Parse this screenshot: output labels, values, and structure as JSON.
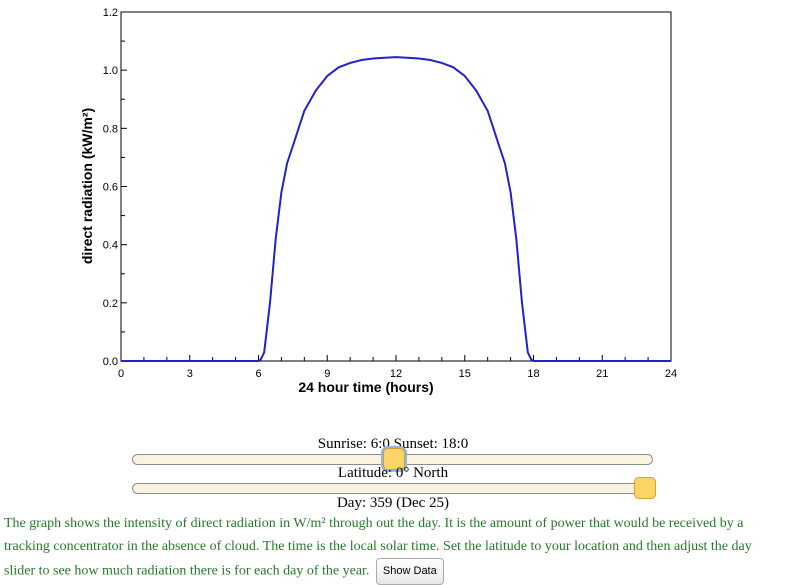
{
  "chart_data": {
    "type": "line",
    "xlabel": "24 hour time (hours)",
    "ylabel": "direct radiation (kW/m²)",
    "xlim": [
      0,
      24
    ],
    "ylim": [
      0,
      1.2
    ],
    "x_ticks": [
      0,
      3,
      6,
      9,
      12,
      15,
      18,
      21,
      24
    ],
    "y_ticks": [
      "0.0",
      "0.2",
      "0.4",
      "0.6",
      "0.8",
      "1.0",
      "1.2"
    ],
    "grid": false,
    "line_color": "#2222cc",
    "x": [
      0,
      1,
      2,
      3,
      4,
      5,
      6,
      6.1,
      6.25,
      6.5,
      6.75,
      7,
      7.25,
      7.5,
      8,
      8.5,
      9,
      9.5,
      10,
      10.5,
      11,
      11.5,
      12,
      12.5,
      13,
      13.5,
      14,
      14.5,
      15,
      15.5,
      16,
      16.5,
      16.75,
      17,
      17.25,
      17.5,
      17.75,
      17.9,
      18,
      19,
      20,
      21,
      22,
      23,
      24
    ],
    "y": [
      0,
      0,
      0,
      0,
      0,
      0,
      0,
      0.005,
      0.03,
      0.2,
      0.42,
      0.58,
      0.68,
      0.74,
      0.86,
      0.93,
      0.98,
      1.01,
      1.025,
      1.035,
      1.04,
      1.043,
      1.045,
      1.043,
      1.04,
      1.035,
      1.025,
      1.01,
      0.98,
      0.93,
      0.86,
      0.74,
      0.68,
      0.58,
      0.42,
      0.2,
      0.03,
      0.005,
      0,
      0,
      0,
      0,
      0,
      0,
      0
    ]
  },
  "sunrise": {
    "text": "Sunrise: 6:0 Sunset: 18:0",
    "slider_fraction": 0.5
  },
  "latitude": {
    "text": "Latitude: 0° North",
    "slider_fraction": 0.5
  },
  "day": {
    "text": "Day: 359 (Dec 25)",
    "slider_fraction": 0.983
  },
  "description": "The graph shows the intensity of direct radiation in W/m² through out the day. It is the amount of power that would be received by a tracking concentrator in the absence of cloud. The time is the local solar time. Set the latitude to your location and then adjust the day slider to see how much radiation there is for each day of the year.",
  "show_data_label": "Show Data",
  "colors": {
    "handle": "#fbd567",
    "slider_track": "#faf3df",
    "description_text": "#267a26"
  }
}
